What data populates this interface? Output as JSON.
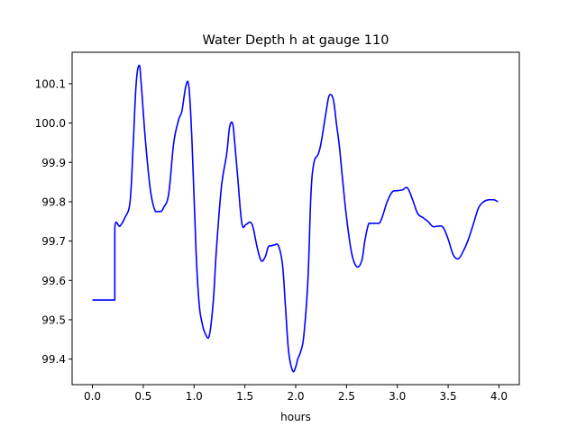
{
  "chart_data": {
    "type": "line",
    "title": "Water Depth h at gauge 110",
    "xlabel": "hours",
    "ylabel": "",
    "xlim": [
      -0.2,
      4.2
    ],
    "ylim": [
      99.335,
      100.18
    ],
    "x_ticks": [
      0.0,
      0.5,
      1.0,
      1.5,
      2.0,
      2.5,
      3.0,
      3.5,
      4.0
    ],
    "x_tick_labels": [
      "0.0",
      "0.5",
      "1.0",
      "1.5",
      "2.0",
      "2.5",
      "3.0",
      "3.5",
      "4.0"
    ],
    "y_ticks": [
      99.4,
      99.5,
      99.6,
      99.7,
      99.8,
      99.9,
      100.0,
      100.1
    ],
    "y_tick_labels": [
      "99.4",
      "99.5",
      "99.6",
      "99.7",
      "99.8",
      "99.9",
      "100.0",
      "100.1"
    ],
    "grid": false,
    "series": [
      {
        "color": "#0000ff",
        "x": [
          0.0,
          0.2,
          0.22,
          0.22,
          0.27,
          0.32,
          0.37,
          0.4,
          0.43,
          0.46,
          0.48,
          0.52,
          0.57,
          0.62,
          0.67,
          0.7,
          0.75,
          0.8,
          0.85,
          0.88,
          0.92,
          0.95,
          0.98,
          1.02,
          1.05,
          1.08,
          1.11,
          1.15,
          1.19,
          1.22,
          1.27,
          1.32,
          1.35,
          1.38,
          1.4,
          1.43,
          1.47,
          1.51,
          1.55,
          1.58,
          1.62,
          1.66,
          1.7,
          1.73,
          1.76,
          1.79,
          1.83,
          1.87,
          1.9,
          1.93,
          1.97,
          2.0,
          2.02,
          2.05,
          2.08,
          2.12,
          2.15,
          2.18,
          2.22,
          2.25,
          2.3,
          2.33,
          2.37,
          2.4,
          2.43,
          2.46,
          2.5,
          2.55,
          2.6,
          2.65,
          2.68,
          2.72,
          2.77,
          2.82,
          2.85,
          2.9,
          2.95,
          3.0,
          3.05,
          3.1,
          3.15,
          3.2,
          3.25,
          3.3,
          3.35,
          3.4,
          3.45,
          3.5,
          3.55,
          3.6,
          3.65,
          3.7,
          3.75,
          3.8,
          3.85,
          3.9,
          3.95,
          3.99
        ],
        "y": [
          99.55,
          99.55,
          99.55,
          99.733,
          99.738,
          99.76,
          99.8,
          99.94,
          100.1,
          100.147,
          100.1,
          99.96,
          99.83,
          99.775,
          99.775,
          99.785,
          99.82,
          99.95,
          100.01,
          100.03,
          100.095,
          100.09,
          99.95,
          99.67,
          99.54,
          99.49,
          99.465,
          99.46,
          99.55,
          99.68,
          99.84,
          99.92,
          99.99,
          99.998,
          99.95,
          99.86,
          99.745,
          99.742,
          99.748,
          99.735,
          99.685,
          99.65,
          99.66,
          99.685,
          99.688,
          99.69,
          99.688,
          99.64,
          99.53,
          99.42,
          99.37,
          99.38,
          99.4,
          99.42,
          99.46,
          99.6,
          99.82,
          99.9,
          99.92,
          99.95,
          100.03,
          100.07,
          100.06,
          100.0,
          99.94,
          99.86,
          99.76,
          99.67,
          99.635,
          99.65,
          99.7,
          99.745,
          99.745,
          99.745,
          99.76,
          99.8,
          99.825,
          99.828,
          99.83,
          99.835,
          99.805,
          99.77,
          99.76,
          99.75,
          99.737,
          99.738,
          99.735,
          99.705,
          99.665,
          99.655,
          99.675,
          99.705,
          99.745,
          99.785,
          99.8,
          99.805,
          99.805,
          99.8
        ]
      }
    ]
  }
}
